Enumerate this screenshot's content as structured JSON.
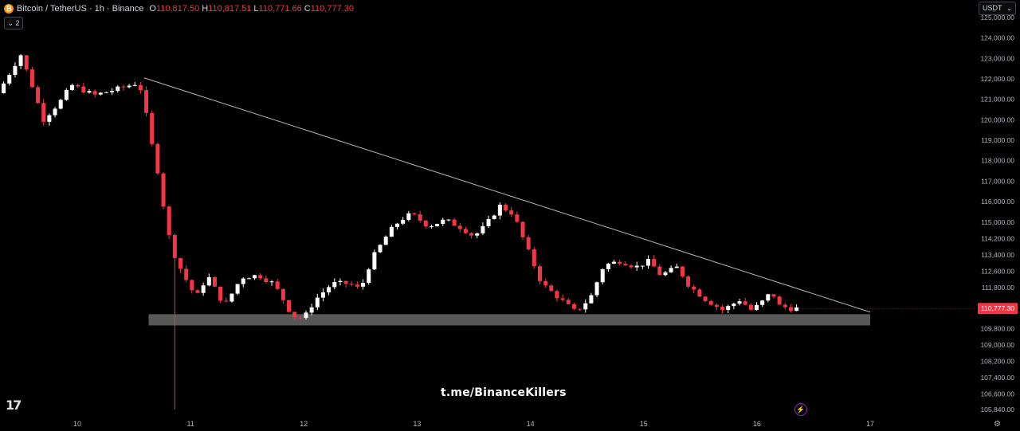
{
  "header": {
    "symbol": "Bitcoin / TetherUS · 1h · Binance",
    "open_label": "O",
    "open": "110,817.50",
    "high_label": "H",
    "high": "110,817.51",
    "low_label": "L",
    "low": "110,771.66",
    "close_label": "C",
    "close": "110,777.30",
    "collapse_label": "⌄ 2",
    "currency": "USDT"
  },
  "watermark": "t.me/BinanceKillers",
  "tv_logo": "17",
  "colors": {
    "up": "#ffffff",
    "down": "#f23645",
    "background": "#000000",
    "zone": "#5d5d5d",
    "trendline": "#b2b5be"
  },
  "icons": {
    "logo": "bitcoin-icon",
    "flash": "lightning-icon",
    "settings": "gear-icon"
  },
  "chart_data": {
    "type": "candlestick",
    "xlabel": "",
    "ylabel": "",
    "x_ticks": [
      "10",
      "11",
      "12",
      "13",
      "14",
      "15",
      "16",
      "17"
    ],
    "y_ticks": [
      "125,000.00",
      "124,000.00",
      "123,000.00",
      "122,000.00",
      "121,000.00",
      "120,000.00",
      "119,000.00",
      "118,000.00",
      "117,000.00",
      "116,000.00",
      "115,000.00",
      "114,200.00",
      "113,400.00",
      "112,600.00",
      "111,800.00",
      "109,800.00",
      "109,000.00",
      "108,200.00",
      "107,400.00",
      "106,600.00",
      "105,840.00"
    ],
    "ylim": [
      105840,
      125000
    ],
    "last_price": "110,777.30",
    "support_zone": {
      "x_start": "10.63",
      "x_end": "17",
      "low": 109950,
      "high": 110500
    },
    "trendline": {
      "start": [
        "10.59",
        122050
      ],
      "end": [
        "17",
        110600
      ]
    },
    "candle_count": 140,
    "spike_low": {
      "x": "10.87",
      "low": 105840
    },
    "path_points": [
      [
        9.35,
        121300
      ],
      [
        9.55,
        123200
      ],
      [
        9.65,
        121700
      ],
      [
        9.75,
        120000
      ],
      [
        9.9,
        120900
      ],
      [
        10.0,
        121700
      ],
      [
        10.2,
        121200
      ],
      [
        10.4,
        121500
      ],
      [
        10.58,
        121800
      ],
      [
        10.62,
        121400
      ],
      [
        10.7,
        119000
      ],
      [
        10.78,
        117000
      ],
      [
        10.84,
        114700
      ],
      [
        10.92,
        113200
      ],
      [
        11.0,
        112300
      ],
      [
        11.1,
        111300
      ],
      [
        11.2,
        112400
      ],
      [
        11.35,
        110900
      ],
      [
        11.5,
        112300
      ],
      [
        11.65,
        112400
      ],
      [
        11.78,
        112000
      ],
      [
        11.85,
        111400
      ],
      [
        11.95,
        110400
      ],
      [
        12.05,
        110300
      ],
      [
        12.15,
        111200
      ],
      [
        12.3,
        112000
      ],
      [
        12.45,
        112000
      ],
      [
        12.55,
        111700
      ],
      [
        12.65,
        113200
      ],
      [
        12.8,
        114500
      ],
      [
        12.9,
        115100
      ],
      [
        13.0,
        115400
      ],
      [
        13.15,
        114800
      ],
      [
        13.3,
        115100
      ],
      [
        13.45,
        114700
      ],
      [
        13.55,
        114300
      ],
      [
        13.65,
        114800
      ],
      [
        13.78,
        115800
      ],
      [
        13.9,
        115400
      ],
      [
        14.0,
        114000
      ],
      [
        14.15,
        112000
      ],
      [
        14.3,
        111300
      ],
      [
        14.45,
        110600
      ],
      [
        14.58,
        111300
      ],
      [
        14.7,
        112900
      ],
      [
        14.85,
        113100
      ],
      [
        14.98,
        112800
      ],
      [
        15.1,
        113100
      ],
      [
        15.2,
        112400
      ],
      [
        15.35,
        112800
      ],
      [
        15.45,
        111900
      ],
      [
        15.6,
        111200
      ],
      [
        15.75,
        110700
      ],
      [
        15.9,
        111200
      ],
      [
        16.0,
        110700
      ],
      [
        16.08,
        111000
      ],
      [
        16.18,
        111600
      ],
      [
        16.25,
        110900
      ],
      [
        16.35,
        110780
      ]
    ]
  }
}
